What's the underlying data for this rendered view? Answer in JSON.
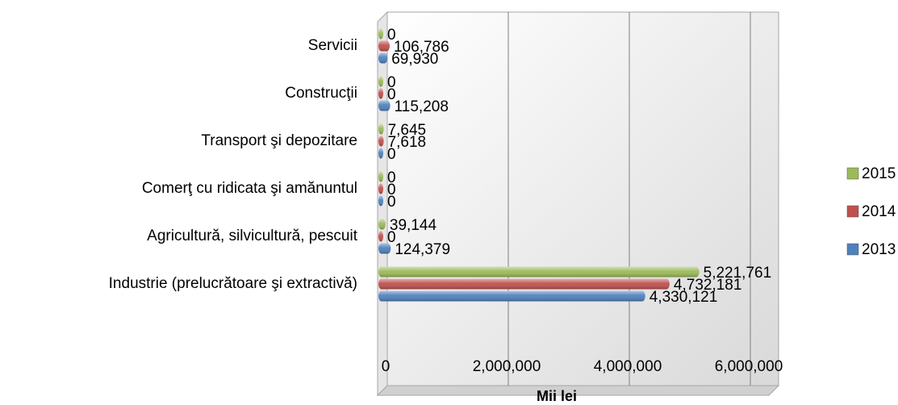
{
  "chart_data": {
    "type": "bar3d-horizontal",
    "categories": [
      "Servicii",
      "Construcţii",
      "Transport şi depozitare",
      "Comerţ cu ridicata şi amănuntul",
      "Agricultură, silvicultură, pescuit",
      "Industrie (prelucrătoare şi extractivă)"
    ],
    "series": [
      {
        "name": "2013",
        "color": "#4f81bd",
        "values": [
          69930,
          115208,
          0,
          0,
          124379,
          4330121
        ],
        "value_labels": [
          "69,930",
          "115,208",
          "0",
          "0",
          "124,379",
          "4,330,121"
        ]
      },
      {
        "name": "2014",
        "color": "#c0504d",
        "values": [
          106786,
          0,
          7618,
          0,
          0,
          4732181
        ],
        "value_labels": [
          "106,786",
          "0",
          "7,618",
          "0",
          "0",
          "4,732,181"
        ]
      },
      {
        "name": "2015",
        "color": "#9bbb59",
        "values": [
          0,
          0,
          7645,
          0,
          39144,
          5221761
        ],
        "value_labels": [
          "0",
          "0",
          "7,645",
          "0",
          "39,144",
          "5,221,761"
        ]
      }
    ],
    "xlabel": "Mii lei",
    "xlim": [
      0,
      6000000
    ],
    "xticks": [
      0,
      {
        "value": 2000000,
        "label": "2,000,000"
      },
      {
        "value": 4000000,
        "label": "4,000,000"
      },
      {
        "value": 6000000,
        "label": "6,000,000"
      }
    ],
    "grid": true,
    "legend": "right"
  }
}
